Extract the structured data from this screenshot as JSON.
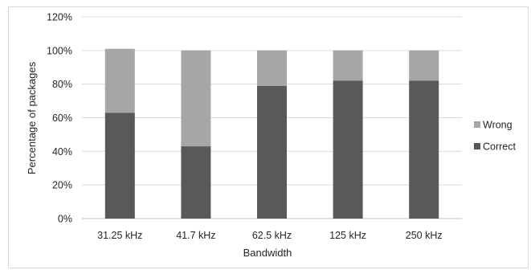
{
  "chart_data": {
    "type": "bar",
    "stacked": true,
    "categories": [
      "31.25 kHz",
      "41.7 kHz",
      "62.5 kHz",
      "125 kHz",
      "250 kHz"
    ],
    "series": [
      {
        "name": "Correct",
        "values": [
          63,
          43,
          79,
          82,
          82
        ],
        "color": "#595959"
      },
      {
        "name": "Wrong",
        "values": [
          38,
          57,
          21,
          18,
          18
        ],
        "color": "#a6a6a6"
      }
    ],
    "xlabel": "Bandwidth",
    "ylabel": "Percentage of packages",
    "yticks": [
      "0%",
      "20%",
      "40%",
      "60%",
      "80%",
      "100%",
      "120%"
    ],
    "ylim": [
      0,
      120
    ],
    "grid": true,
    "legend_position": "right",
    "legend_order": [
      "Wrong",
      "Correct"
    ]
  }
}
